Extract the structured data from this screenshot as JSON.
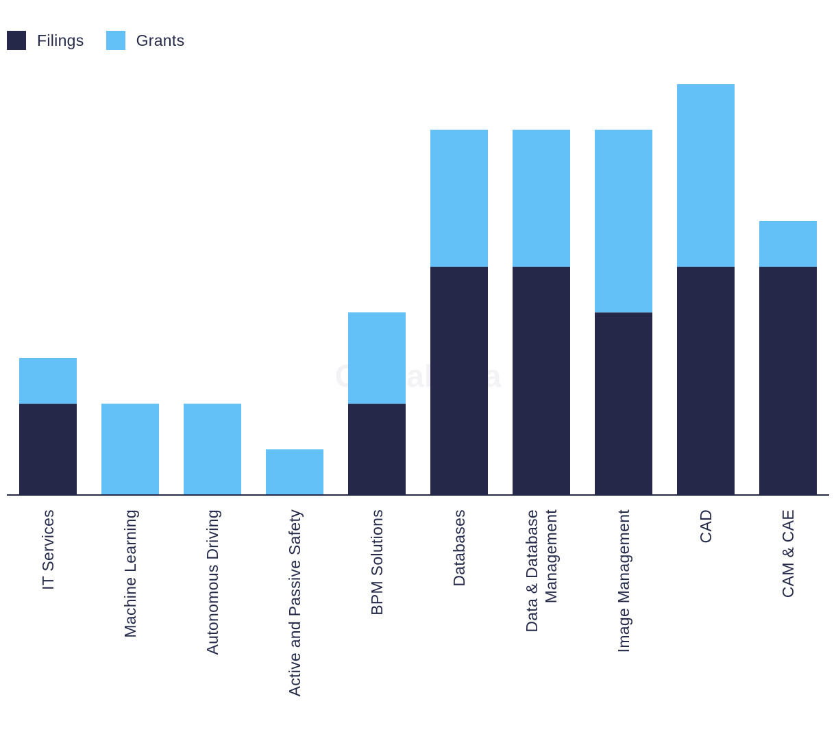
{
  "watermark": "GlobalData",
  "colors": {
    "filings": "#262849",
    "grants": "#63c1f8",
    "axis": "#262a4a"
  },
  "legend": {
    "filings_label": "Filings",
    "grants_label": "Grants"
  },
  "chart_data": {
    "type": "bar",
    "stacked": true,
    "title": "",
    "xlabel": "",
    "ylabel": "",
    "ylim": [
      0,
      9
    ],
    "grid": false,
    "legend_position": "top-left",
    "categories": [
      "IT Services",
      "Machine Learning",
      "Autonomous Driving",
      "Active and Passive Safety",
      "BPM Solutions",
      "Databases",
      "Data & Database Management",
      "Image Management",
      "CAD",
      "CAM & CAE"
    ],
    "category_label_lines": [
      [
        "IT Services"
      ],
      [
        "Machine Learning"
      ],
      [
        "Autonomous Driving"
      ],
      [
        "Active and Passive Safety"
      ],
      [
        "BPM Solutions"
      ],
      [
        "Databases"
      ],
      [
        "Data & Database",
        "Management"
      ],
      [
        "Image Management"
      ],
      [
        "CAD"
      ],
      [
        "CAM & CAE"
      ]
    ],
    "series": [
      {
        "name": "Filings",
        "values": [
          2,
          0,
          0,
          0,
          2,
          5,
          5,
          4,
          5,
          5
        ]
      },
      {
        "name": "Grants",
        "values": [
          1,
          2,
          2,
          1,
          2,
          3,
          3,
          4,
          4,
          1
        ]
      }
    ]
  }
}
